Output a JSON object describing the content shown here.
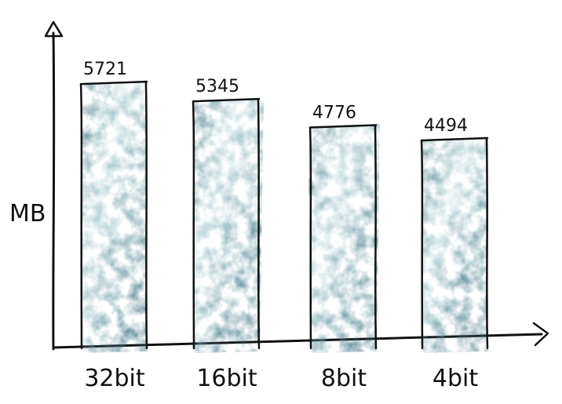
{
  "chart_data": {
    "type": "bar",
    "categories": [
      "32bit",
      "16bit",
      "8bit",
      "4bit"
    ],
    "values": [
      5721,
      5345,
      4776,
      4494
    ],
    "data_labels": [
      "5721",
      "5345",
      "4776",
      "4494"
    ],
    "title": "",
    "xlabel": "",
    "ylabel": "MB",
    "ylim": [
      0,
      6800
    ],
    "grid": false,
    "legend": "none",
    "style": "hand-drawn sketch",
    "colors": {
      "bar_fill": "#4f8793",
      "bar_light": "#9cc3ca",
      "bar_dark": "#2f6671",
      "ink": "#111111"
    }
  }
}
